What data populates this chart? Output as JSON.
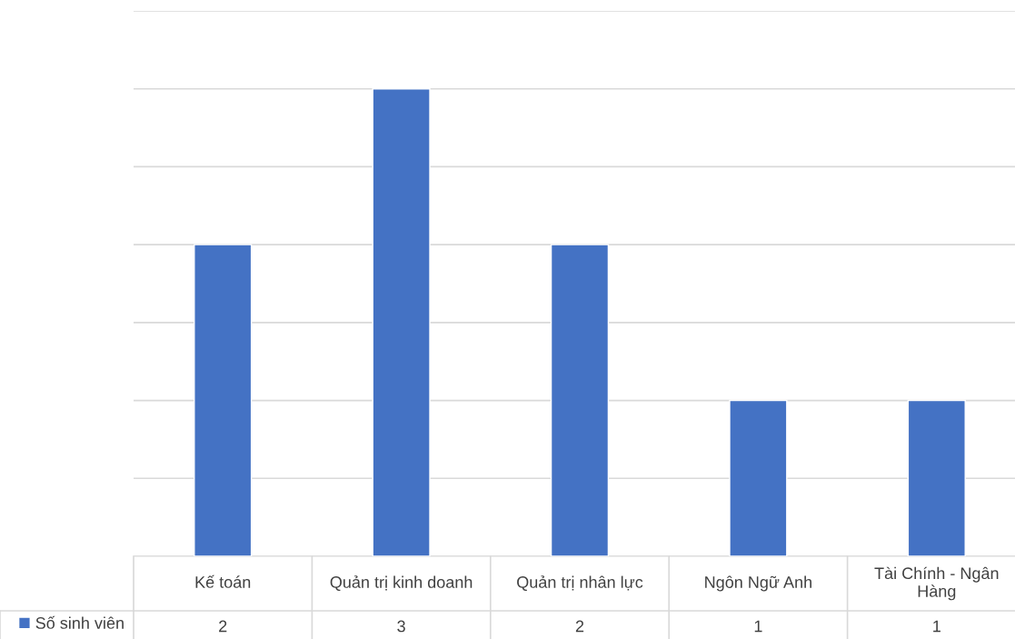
{
  "chart_data": {
    "type": "bar",
    "categories": [
      "Kế toán",
      "Quản trị kinh doanh",
      "Quản trị nhân lực",
      "Ngôn Ngữ Anh",
      "Tài Chính - Ngân Hàng"
    ],
    "series": [
      {
        "name": "Số sinh viên",
        "color": "#4472c4",
        "values": [
          2,
          3,
          2,
          1,
          1
        ]
      }
    ],
    "ylim": [
      0,
      3.5
    ],
    "yticks": [
      {
        "value": 0,
        "label": null
      },
      {
        "value": 0.5,
        "label": null
      },
      {
        "value": 1,
        "label": null
      },
      {
        "value": 1.5,
        "label": null
      },
      {
        "value": 2,
        "label": null
      },
      {
        "value": 2.5,
        "label": null
      },
      {
        "value": 3,
        "label": null
      },
      {
        "value": 3.5,
        "label": null
      }
    ],
    "grid": "y",
    "data_labels": true,
    "legend": "bottom",
    "tick_labels": "x"
  }
}
